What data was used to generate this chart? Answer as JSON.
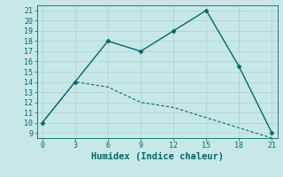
{
  "xlabel": "Humidex (Indice chaleur)",
  "background_color": "#c8e8e8",
  "grid_color": "#b0d8d8",
  "line_color": "#006868",
  "line1_x": [
    0,
    3,
    6,
    9,
    12,
    15,
    18,
    21
  ],
  "line1_y": [
    10,
    14,
    18,
    17,
    19,
    21,
    15.5,
    9
  ],
  "line2_x": [
    0,
    3,
    6,
    9,
    12,
    15,
    18,
    21
  ],
  "line2_y": [
    10,
    14,
    13.5,
    12,
    11.5,
    10.5,
    9.5,
    8.5
  ],
  "xlim": [
    -0.5,
    21.5
  ],
  "ylim": [
    8.5,
    21.5
  ],
  "xticks": [
    0,
    3,
    6,
    9,
    12,
    15,
    18,
    21
  ],
  "yticks": [
    9,
    10,
    11,
    12,
    13,
    14,
    15,
    16,
    17,
    18,
    19,
    20,
    21
  ],
  "tick_fontsize": 6,
  "xlabel_fontsize": 7.5
}
